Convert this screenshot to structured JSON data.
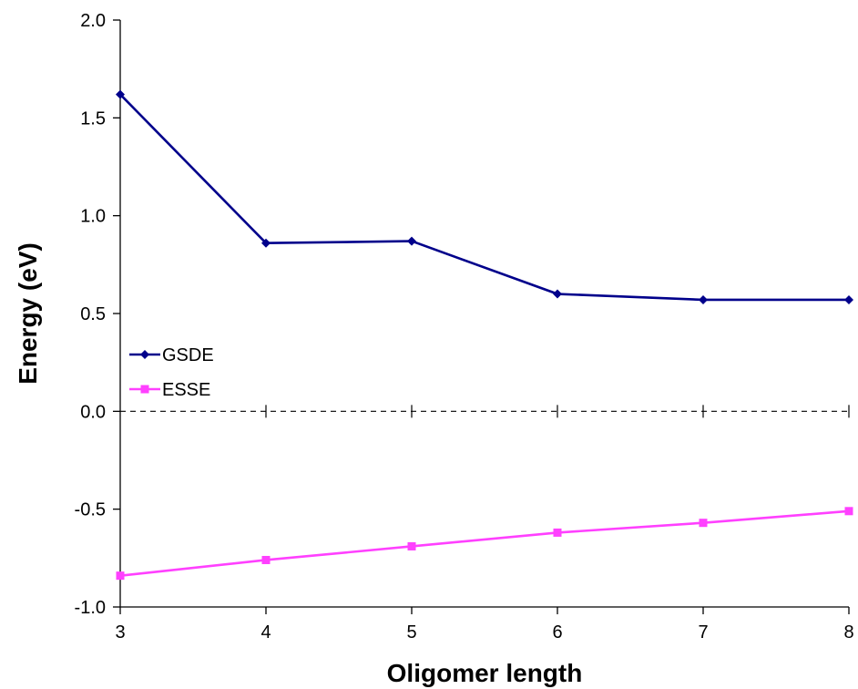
{
  "chart_data": {
    "type": "line",
    "title": "",
    "xlabel": "Oligomer length",
    "ylabel": "Energy (eV)",
    "x": [
      3,
      4,
      5,
      6,
      7,
      8
    ],
    "xlim": [
      3,
      8
    ],
    "ylim": [
      -1.0,
      2.0
    ],
    "xticks": [
      "3",
      "4",
      "5",
      "6",
      "7",
      "8"
    ],
    "yticks": [
      "2.0",
      "1.5",
      "1.0",
      "0.5",
      "0.0",
      "-0.5",
      "-1.0"
    ],
    "grid": false,
    "legend_position": "left",
    "reference_line": {
      "y": 0.0,
      "style": "dashed"
    },
    "series": [
      {
        "name": "GSDE",
        "color": "#00008B",
        "marker": "diamond",
        "values": [
          1.62,
          0.86,
          0.87,
          0.6,
          0.57,
          0.57
        ]
      },
      {
        "name": "ESSE",
        "color": "#FF40FF",
        "marker": "square",
        "values": [
          -0.84,
          -0.76,
          -0.69,
          -0.62,
          -0.57,
          -0.51
        ]
      }
    ]
  }
}
